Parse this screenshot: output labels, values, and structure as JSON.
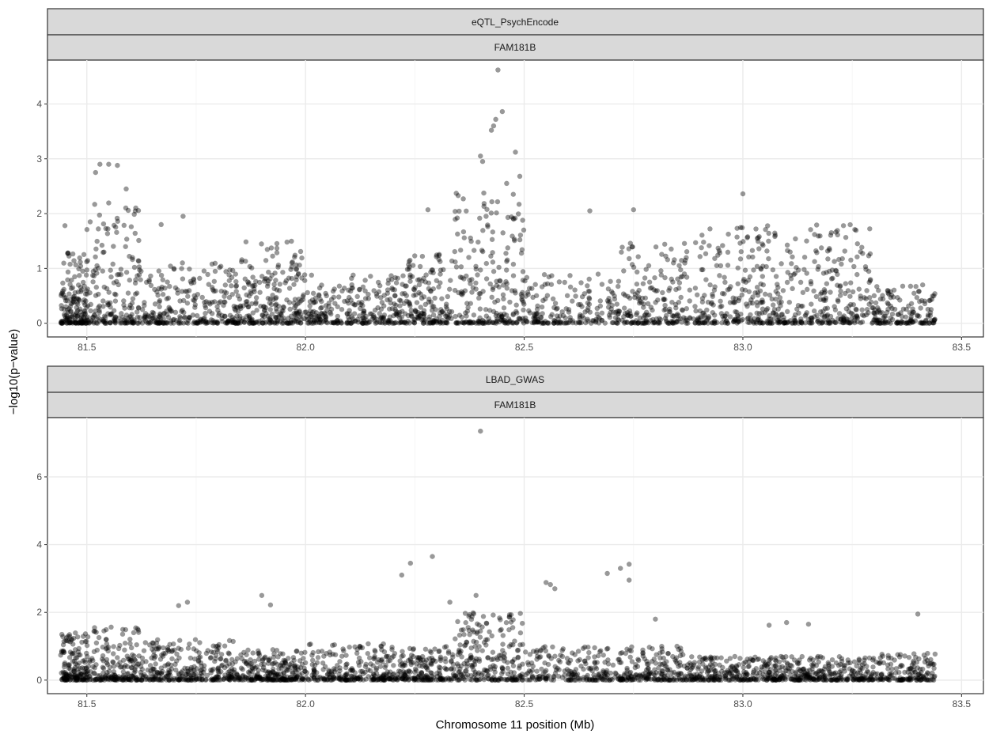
{
  "chart_data": {
    "type": "scatter",
    "xlabel": "Chromosome 11 position (Mb)",
    "ylabel": "−log10(p−value)",
    "point_color": "#000000",
    "point_alpha": 0.4,
    "grid": true,
    "x_ticks": [
      "81.5",
      "82.0",
      "82.5",
      "83.0",
      "83.5"
    ],
    "xlim": [
      81.41,
      83.55
    ],
    "panels": [
      {
        "strip_top": "eQTL_PsychEncode",
        "strip_gene": "FAM181B",
        "ylim": [
          -0.25,
          4.8
        ],
        "y_ticks": [
          0,
          1,
          2,
          3,
          4
        ],
        "top_hits": [
          {
            "x": 82.44,
            "y": 4.62
          },
          {
            "x": 82.45,
            "y": 3.86
          },
          {
            "x": 82.435,
            "y": 3.72
          },
          {
            "x": 82.43,
            "y": 3.6
          },
          {
            "x": 82.425,
            "y": 3.52
          },
          {
            "x": 82.48,
            "y": 3.12
          },
          {
            "x": 82.4,
            "y": 3.05
          },
          {
            "x": 82.405,
            "y": 2.95
          },
          {
            "x": 81.53,
            "y": 2.9
          },
          {
            "x": 81.55,
            "y": 2.9
          },
          {
            "x": 81.57,
            "y": 2.88
          },
          {
            "x": 81.52,
            "y": 2.75
          },
          {
            "x": 82.49,
            "y": 2.68
          },
          {
            "x": 82.46,
            "y": 2.55
          },
          {
            "x": 81.59,
            "y": 2.45
          },
          {
            "x": 83.0,
            "y": 2.36
          },
          {
            "x": 82.65,
            "y": 2.05
          },
          {
            "x": 82.28,
            "y": 2.07
          },
          {
            "x": 82.75,
            "y": 2.07
          },
          {
            "x": 81.72,
            "y": 1.95
          },
          {
            "x": 83.23,
            "y": 1.78
          },
          {
            "x": 81.45,
            "y": 1.78
          },
          {
            "x": 81.67,
            "y": 1.8
          }
        ],
        "clusters": [
          {
            "x0": 81.44,
            "x1": 81.5,
            "ymax": 1.3,
            "n": 160,
            "seed": 11
          },
          {
            "x0": 81.5,
            "x1": 81.62,
            "ymax": 2.2,
            "n": 190,
            "seed": 12
          },
          {
            "x0": 81.62,
            "x1": 81.85,
            "ymax": 1.1,
            "n": 280,
            "seed": 13
          },
          {
            "x0": 81.85,
            "x1": 82.0,
            "ymax": 1.5,
            "n": 230,
            "seed": 14
          },
          {
            "x0": 82.0,
            "x1": 82.22,
            "ymax": 0.9,
            "n": 260,
            "seed": 15
          },
          {
            "x0": 82.22,
            "x1": 82.34,
            "ymax": 1.3,
            "n": 170,
            "seed": 16
          },
          {
            "x0": 82.34,
            "x1": 82.5,
            "ymax": 2.4,
            "n": 230,
            "seed": 17
          },
          {
            "x0": 82.5,
            "x1": 82.72,
            "ymax": 0.9,
            "n": 190,
            "seed": 18
          },
          {
            "x0": 82.72,
            "x1": 82.88,
            "ymax": 1.5,
            "n": 190,
            "seed": 19
          },
          {
            "x0": 82.88,
            "x1": 83.08,
            "ymax": 1.8,
            "n": 250,
            "seed": 20
          },
          {
            "x0": 83.08,
            "x1": 83.3,
            "ymax": 1.8,
            "n": 270,
            "seed": 21
          },
          {
            "x0": 83.3,
            "x1": 83.44,
            "ymax": 0.7,
            "n": 150,
            "seed": 22
          }
        ]
      },
      {
        "strip_top": "LBAD_GWAS",
        "strip_gene": "FAM181B",
        "ylim": [
          -0.4,
          7.75
        ],
        "y_ticks": [
          0,
          2,
          4,
          6
        ],
        "top_hits": [
          {
            "x": 82.4,
            "y": 7.35
          },
          {
            "x": 82.29,
            "y": 3.65
          },
          {
            "x": 82.24,
            "y": 3.45
          },
          {
            "x": 82.22,
            "y": 3.1
          },
          {
            "x": 82.74,
            "y": 3.42
          },
          {
            "x": 82.72,
            "y": 3.3
          },
          {
            "x": 82.69,
            "y": 3.15
          },
          {
            "x": 82.74,
            "y": 2.95
          },
          {
            "x": 82.55,
            "y": 2.88
          },
          {
            "x": 82.56,
            "y": 2.82
          },
          {
            "x": 82.57,
            "y": 2.7
          },
          {
            "x": 81.9,
            "y": 2.5
          },
          {
            "x": 81.92,
            "y": 2.22
          },
          {
            "x": 82.39,
            "y": 2.5
          },
          {
            "x": 82.33,
            "y": 2.3
          },
          {
            "x": 81.73,
            "y": 2.3
          },
          {
            "x": 81.71,
            "y": 2.2
          },
          {
            "x": 83.4,
            "y": 1.95
          },
          {
            "x": 83.1,
            "y": 1.7
          },
          {
            "x": 83.15,
            "y": 1.65
          },
          {
            "x": 83.06,
            "y": 1.62
          },
          {
            "x": 82.8,
            "y": 1.8
          }
        ],
        "clusters": [
          {
            "x0": 81.44,
            "x1": 81.5,
            "ymax": 1.4,
            "n": 150,
            "seed": 31
          },
          {
            "x0": 81.5,
            "x1": 81.62,
            "ymax": 1.6,
            "n": 190,
            "seed": 32
          },
          {
            "x0": 81.62,
            "x1": 81.85,
            "ymax": 1.2,
            "n": 300,
            "seed": 33
          },
          {
            "x0": 81.85,
            "x1": 82.0,
            "ymax": 0.9,
            "n": 230,
            "seed": 34
          },
          {
            "x0": 82.0,
            "x1": 82.22,
            "ymax": 1.1,
            "n": 260,
            "seed": 35
          },
          {
            "x0": 82.22,
            "x1": 82.34,
            "ymax": 1.0,
            "n": 170,
            "seed": 36
          },
          {
            "x0": 82.34,
            "x1": 82.5,
            "ymax": 2.0,
            "n": 230,
            "seed": 37
          },
          {
            "x0": 82.5,
            "x1": 82.72,
            "ymax": 1.0,
            "n": 200,
            "seed": 38
          },
          {
            "x0": 82.72,
            "x1": 82.88,
            "ymax": 1.0,
            "n": 190,
            "seed": 39
          },
          {
            "x0": 82.88,
            "x1": 83.08,
            "ymax": 0.7,
            "n": 250,
            "seed": 40
          },
          {
            "x0": 83.08,
            "x1": 83.3,
            "ymax": 0.7,
            "n": 270,
            "seed": 41
          },
          {
            "x0": 83.3,
            "x1": 83.44,
            "ymax": 0.8,
            "n": 150,
            "seed": 42
          }
        ]
      }
    ]
  }
}
